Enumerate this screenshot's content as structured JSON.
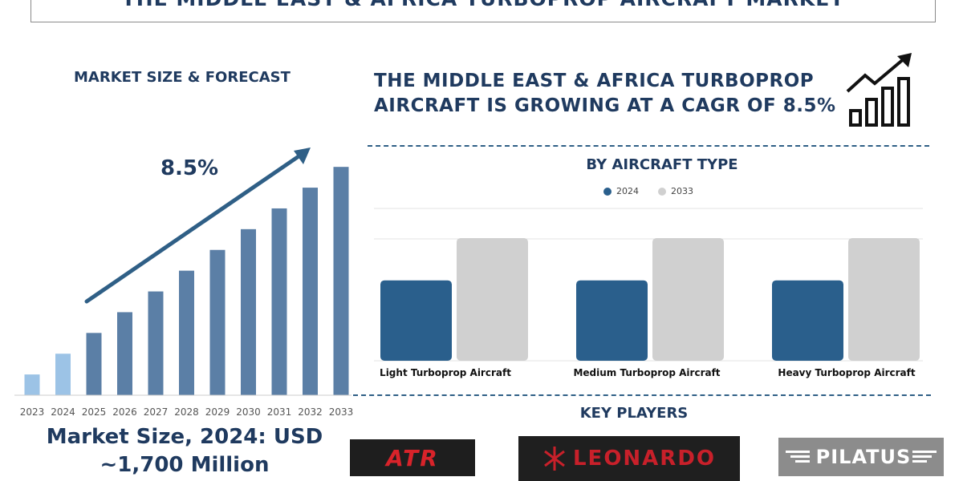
{
  "banner": {
    "title": "THE MIDDLE EAST & AFRICA TURBOPROP AIRCRAFT MARKET"
  },
  "left_panel": {
    "heading": "MARKET SIZE & FORECAST",
    "cagr_label": "8.5%",
    "market_size_line1": "Market Size, 2024: USD",
    "market_size_line2": "~1,700 Million"
  },
  "headline": "THE MIDDLE EAST & AFRICA TURBOPROP AIRCRAFT IS GROWING AT A CAGR OF 8.5%",
  "icons": {
    "trend": "growth-chart-icon"
  },
  "right_panel": {
    "heading": "BY AIRCRAFT TYPE",
    "players_heading": "KEY PLAYERS"
  },
  "players": [
    {
      "name": "ATR",
      "bg": "#1e1e1e",
      "color": "#d8232a"
    },
    {
      "name": "LEONARDO",
      "bg": "#1f1f1f",
      "color": "#c8202a"
    },
    {
      "name": "PILATUS",
      "bg": "#8c8c8c",
      "color": "#ffffff"
    }
  ],
  "colors": {
    "navy": "#1f3a5f",
    "bar_blue": "#5b7fa6",
    "bar_light": "#9cc3e6",
    "series_2024": "#2a5f8c",
    "series_2033": "#d0d0d0"
  },
  "chart_data": [
    {
      "type": "bar",
      "categories": [
        "2023",
        "2024",
        "2025",
        "2026",
        "2027",
        "2028",
        "2029",
        "2030",
        "2031",
        "2032",
        "2033"
      ],
      "values": [
        1.0,
        2.0,
        3.0,
        4.0,
        5.0,
        6.0,
        7.0,
        8.0,
        9.0,
        10.0,
        11.0
      ],
      "highlighted": [
        "2023",
        "2024"
      ],
      "annotation": "8.5%",
      "grid": false,
      "ylim": [
        0,
        11.2
      ]
    },
    {
      "type": "bar",
      "categories": [
        "Light Turboprop Aircraft",
        "Medium Turboprop Aircraft",
        "Heavy Turboprop Aircraft"
      ],
      "series": [
        {
          "name": "2024",
          "values": [
            3.8,
            3.8,
            3.8
          ]
        },
        {
          "name": "2033",
          "values": [
            5.8,
            5.8,
            5.8
          ]
        }
      ],
      "legend": "top-center",
      "grid": true,
      "ylim": [
        0,
        7.2
      ]
    }
  ]
}
